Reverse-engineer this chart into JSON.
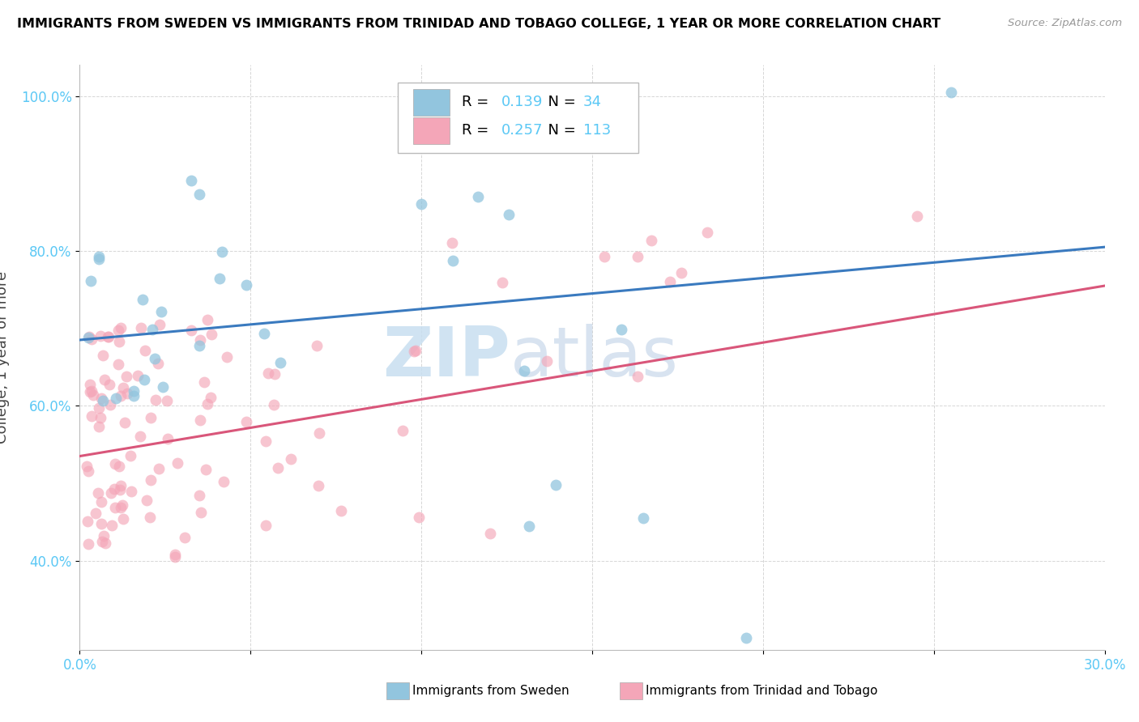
{
  "title": "IMMIGRANTS FROM SWEDEN VS IMMIGRANTS FROM TRINIDAD AND TOBAGO COLLEGE, 1 YEAR OR MORE CORRELATION CHART",
  "source": "Source: ZipAtlas.com",
  "ylabel": "College, 1 year or more",
  "xlim": [
    0.0,
    0.3
  ],
  "ylim": [
    0.285,
    1.04
  ],
  "yticks": [
    0.4,
    0.6,
    0.8,
    1.0
  ],
  "ytick_labels": [
    "40.0%",
    "60.0%",
    "80.0%",
    "100.0%"
  ],
  "xtick_labels": [
    "0.0%",
    "",
    "",
    "",
    "",
    "",
    "30.0%"
  ],
  "sweden_R": 0.139,
  "sweden_N": 34,
  "trinidad_R": 0.257,
  "trinidad_N": 113,
  "blue_color": "#92c5de",
  "pink_color": "#f4a6b8",
  "blue_line_color": "#3a7abf",
  "pink_line_color": "#d9567a",
  "tick_color": "#5bc8f5",
  "watermark_color": "#ddeeff",
  "sweden_label": "Immigrants from Sweden",
  "trinidad_label": "Immigrants from Trinidad and Tobago",
  "blue_line_y0": 0.685,
  "blue_line_y1": 0.805,
  "pink_line_y0": 0.535,
  "pink_line_y1": 0.755
}
